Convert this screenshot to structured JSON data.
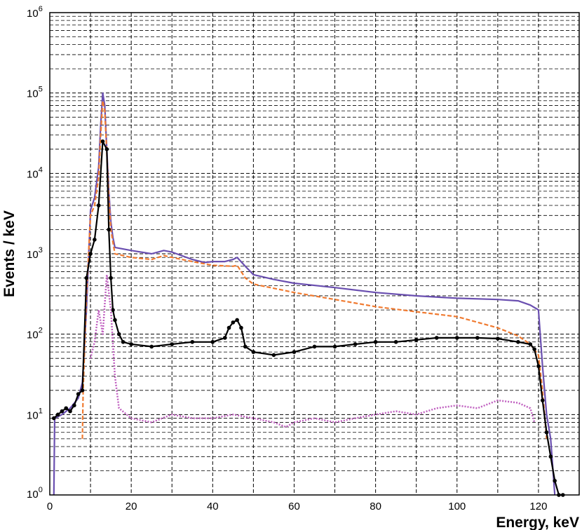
{
  "chart_data": {
    "type": "line",
    "xlabel": "Energy, keV",
    "ylabel": "Events / keV",
    "xlim": [
      0,
      130
    ],
    "ylim": [
      1,
      1000000
    ],
    "y_scale": "log",
    "grid": true,
    "x_ticks": [
      "0",
      "20",
      "40",
      "60",
      "80",
      "100",
      "120"
    ],
    "y_ticks": [
      {
        "base": "10",
        "exp": "0"
      },
      {
        "base": "10",
        "exp": "1"
      },
      {
        "base": "10",
        "exp": "2"
      },
      {
        "base": "10",
        "exp": "3"
      },
      {
        "base": "10",
        "exp": "4"
      },
      {
        "base": "10",
        "exp": "5"
      },
      {
        "base": "10",
        "exp": "6"
      }
    ],
    "series": [
      {
        "color": "#6a4fb0",
        "style": "solid",
        "x": [
          1,
          1.2,
          3,
          5,
          7,
          8,
          9,
          10,
          11,
          12,
          12.5,
          13,
          13.5,
          14,
          14.5,
          15,
          15.5,
          16,
          20,
          25,
          28,
          30,
          35,
          38,
          40,
          43,
          45,
          46,
          48,
          50,
          55,
          60,
          70,
          80,
          90,
          100,
          110,
          115,
          118,
          120,
          121,
          122,
          123,
          124
        ],
        "y": [
          1,
          9,
          10,
          12,
          16,
          25,
          200,
          3500,
          5000,
          12000,
          40000,
          100000,
          70000,
          20000,
          6000,
          2500,
          1600,
          1200,
          1100,
          1000,
          1100,
          1050,
          850,
          780,
          800,
          800,
          850,
          900,
          700,
          550,
          480,
          430,
          380,
          330,
          300,
          280,
          270,
          260,
          230,
          200,
          40,
          10,
          5,
          1
        ]
      },
      {
        "color": "#f07a30",
        "style": "dashed",
        "x": [
          8,
          8.2,
          9,
          10,
          11,
          12,
          12.5,
          13,
          13.5,
          14,
          14.5,
          15,
          15.5,
          16,
          20,
          25,
          28,
          30,
          35,
          40,
          45,
          46,
          48,
          50,
          60,
          70,
          80,
          90,
          100,
          110,
          115,
          118,
          120,
          121,
          122
        ],
        "y": [
          5,
          20,
          300,
          3000,
          4000,
          9000,
          30000,
          80000,
          60000,
          18000,
          5000,
          2000,
          1400,
          1000,
          900,
          850,
          950,
          900,
          800,
          720,
          700,
          720,
          500,
          420,
          330,
          270,
          220,
          190,
          165,
          120,
          95,
          75,
          55,
          20,
          5
        ]
      },
      {
        "color": "#000000",
        "style": "markers",
        "x": [
          1,
          2,
          3,
          4,
          5,
          6,
          7,
          8,
          9,
          10,
          11,
          12,
          13,
          14,
          14.5,
          15,
          15.5,
          16,
          17,
          18,
          20,
          25,
          30,
          35,
          40,
          43,
          44,
          45,
          46,
          47,
          48,
          50,
          55,
          60,
          65,
          70,
          75,
          80,
          85,
          90,
          95,
          100,
          105,
          110,
          115,
          118,
          119,
          120,
          121,
          122,
          123,
          124,
          125,
          126
        ],
        "y": [
          9,
          10,
          11,
          12,
          11,
          13,
          18,
          20,
          500,
          1000,
          1500,
          4000,
          25000,
          20000,
          2000,
          500,
          200,
          150,
          100,
          80,
          75,
          70,
          75,
          80,
          80,
          90,
          120,
          140,
          150,
          120,
          70,
          60,
          55,
          60,
          70,
          70,
          75,
          80,
          80,
          85,
          90,
          90,
          90,
          88,
          80,
          75,
          65,
          40,
          15,
          6,
          3,
          1.5,
          1,
          1
        ]
      },
      {
        "color": "#c060c0",
        "style": "dotted",
        "x": [
          10,
          11,
          12,
          13,
          14,
          15,
          16,
          17,
          20,
          25,
          30,
          35,
          40,
          45,
          50,
          55,
          58,
          60,
          65,
          70,
          75,
          80,
          85,
          90,
          95,
          100,
          105,
          110,
          115,
          118,
          119
        ],
        "y": [
          50,
          80,
          200,
          100,
          550,
          200,
          30,
          12,
          9,
          8,
          10,
          9,
          9,
          10,
          9,
          8,
          7,
          8,
          9,
          8,
          9,
          10,
          11,
          10,
          12,
          13,
          12,
          15,
          14,
          12,
          8
        ]
      }
    ]
  }
}
